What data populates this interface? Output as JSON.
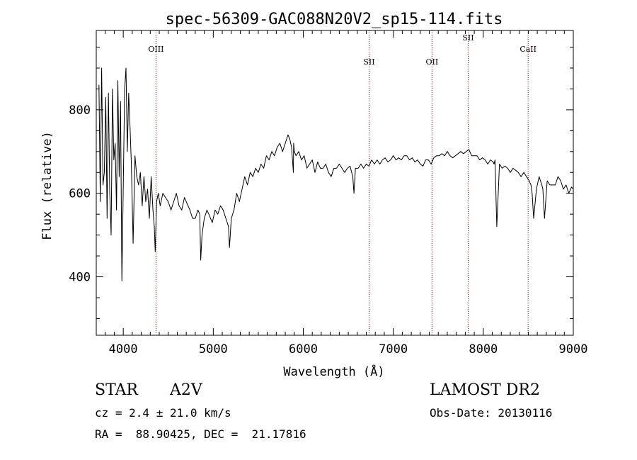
{
  "chart_data": {
    "type": "line",
    "title": "spec-56309-GAC088N20V2_sp15-114.fits",
    "xlabel": "Wavelength (Å)",
    "ylabel": "Flux (relative)",
    "xlim": [
      3700,
      9000
    ],
    "ylim": [
      260,
      990
    ],
    "xticks": [
      4000,
      5000,
      6000,
      7000,
      8000,
      9000
    ],
    "yticks": [
      400,
      600,
      800
    ],
    "grid": false,
    "line_color": "#000000",
    "marker_color": "#8b0000",
    "lines": [
      {
        "label": "OIII",
        "x": 4364
      },
      {
        "label": "SII",
        "x": 6731
      },
      {
        "label": "OII",
        "x": 7430
      },
      {
        "label": "SII",
        "x": 7832
      },
      {
        "label": "CaII",
        "x": 8498
      }
    ],
    "series": [
      {
        "x": [
          3730,
          3745,
          3760,
          3775,
          3790,
          3805,
          3820,
          3835,
          3850,
          3865,
          3880,
          3895,
          3910,
          3925,
          3940,
          3955,
          3970,
          3985,
          4000,
          4015,
          4030,
          4045,
          4060,
          4075,
          4090,
          4110,
          4130,
          4150,
          4170,
          4190,
          4210,
          4230,
          4250,
          4270,
          4290,
          4310,
          4330,
          4345,
          4355,
          4370,
          4390,
          4410,
          4440,
          4470,
          4500,
          4530,
          4560,
          4590,
          4620,
          4650,
          4680,
          4710,
          4740,
          4770,
          4800,
          4830,
          4850,
          4861,
          4875,
          4900,
          4930,
          4960,
          4990,
          5020,
          5050,
          5080,
          5110,
          5140,
          5170,
          5180,
          5200,
          5230,
          5260,
          5290,
          5320,
          5350,
          5380,
          5410,
          5440,
          5470,
          5500,
          5530,
          5560,
          5590,
          5620,
          5650,
          5680,
          5710,
          5740,
          5770,
          5800,
          5830,
          5850,
          5870,
          5890,
          5893,
          5900,
          5920,
          5950,
          5980,
          6010,
          6040,
          6070,
          6100,
          6130,
          6160,
          6190,
          6220,
          6250,
          6280,
          6310,
          6340,
          6370,
          6400,
          6430,
          6460,
          6490,
          6520,
          6550,
          6563,
          6580,
          6610,
          6640,
          6670,
          6700,
          6730,
          6760,
          6790,
          6820,
          6850,
          6880,
          6910,
          6940,
          6970,
          7000,
          7030,
          7060,
          7090,
          7120,
          7150,
          7180,
          7210,
          7240,
          7270,
          7300,
          7330,
          7360,
          7390,
          7420,
          7450,
          7480,
          7510,
          7540,
          7570,
          7600,
          7630,
          7660,
          7690,
          7720,
          7750,
          7780,
          7810,
          7840,
          7870,
          7900,
          7930,
          7960,
          7990,
          8020,
          8050,
          8080,
          8110,
          8120,
          8130,
          8150,
          8180,
          8210,
          8240,
          8270,
          8300,
          8330,
          8360,
          8390,
          8420,
          8450,
          8480,
          8510,
          8530,
          8542,
          8560,
          8590,
          8620,
          8650,
          8662,
          8680,
          8710,
          8740,
          8770,
          8800,
          8830,
          8860,
          8890,
          8920,
          8950,
          8980,
          9000
        ],
        "y": [
          860,
          580,
          900,
          620,
          650,
          830,
          540,
          840,
          600,
          500,
          850,
          680,
          720,
          560,
          870,
          640,
          820,
          390,
          620,
          850,
          900,
          700,
          840,
          760,
          670,
          480,
          690,
          640,
          620,
          650,
          570,
          640,
          580,
          610,
          540,
          640,
          560,
          520,
          460,
          580,
          600,
          570,
          600,
          590,
          580,
          560,
          580,
          600,
          570,
          560,
          590,
          575,
          560,
          540,
          540,
          560,
          550,
          440,
          500,
          540,
          560,
          545,
          530,
          560,
          550,
          570,
          560,
          540,
          520,
          470,
          540,
          560,
          600,
          580,
          610,
          640,
          620,
          650,
          640,
          660,
          650,
          670,
          660,
          690,
          680,
          700,
          690,
          710,
          720,
          700,
          720,
          740,
          730,
          710,
          650,
          720,
          700,
          690,
          700,
          680,
          690,
          660,
          670,
          680,
          650,
          675,
          660,
          660,
          670,
          650,
          640,
          660,
          660,
          670,
          660,
          650,
          660,
          665,
          640,
          600,
          660,
          660,
          670,
          660,
          670,
          665,
          680,
          670,
          680,
          670,
          680,
          685,
          675,
          680,
          690,
          680,
          685,
          680,
          690,
          690,
          680,
          685,
          675,
          680,
          670,
          665,
          680,
          680,
          670,
          685,
          690,
          690,
          695,
          690,
          700,
          690,
          685,
          690,
          695,
          700,
          695,
          700,
          705,
          690,
          690,
          690,
          680,
          685,
          680,
          670,
          680,
          675,
          670,
          680,
          520,
          670,
          660,
          665,
          660,
          650,
          660,
          655,
          650,
          640,
          650,
          640,
          630,
          620,
          600,
          540,
          610,
          640,
          620,
          610,
          540,
          630,
          620,
          620,
          620,
          640,
          630,
          610,
          620,
          600,
          615,
          610
        ]
      }
    ]
  },
  "info": {
    "object_class": "STAR",
    "subclass": "A2V",
    "survey": "LAMOST DR2",
    "redshift": "cz = 2.4 ± 21.0 km/s",
    "obs_date": "Obs-Date: 20130116",
    "coords": "RA =  88.90425, DEC =  21.17816"
  }
}
